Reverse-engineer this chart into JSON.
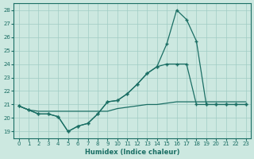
{
  "xlabel": "Humidex (Indice chaleur)",
  "bg_color": "#cce8e0",
  "grid_color": "#a0ccC4",
  "line_color": "#1a6e64",
  "xlim": [
    -0.5,
    23.5
  ],
  "ylim": [
    18.5,
    28.5
  ],
  "xticks": [
    0,
    1,
    2,
    3,
    4,
    5,
    6,
    7,
    8,
    9,
    10,
    11,
    12,
    13,
    14,
    15,
    16,
    17,
    18,
    19,
    20,
    21,
    22,
    23
  ],
  "yticks": [
    19,
    20,
    21,
    22,
    23,
    24,
    25,
    26,
    27,
    28
  ],
  "line1_x": [
    0,
    1,
    2,
    3,
    4,
    5,
    6,
    7,
    8,
    9,
    10,
    11,
    12,
    13,
    14,
    15,
    16,
    17,
    18,
    19,
    20,
    21,
    22,
    23
  ],
  "line1_y": [
    20.9,
    20.6,
    20.3,
    20.3,
    20.1,
    19.0,
    19.4,
    19.6,
    20.3,
    21.2,
    21.3,
    21.8,
    22.5,
    23.3,
    23.8,
    25.5,
    28.0,
    27.3,
    25.7,
    21.0,
    21.0,
    21.0,
    21.0,
    21.0
  ],
  "line2_x": [
    0,
    1,
    2,
    3,
    4,
    5,
    6,
    7,
    8,
    9,
    10,
    11,
    12,
    13,
    14,
    15,
    16,
    17,
    18,
    19,
    20,
    21,
    22,
    23
  ],
  "line2_y": [
    20.9,
    20.6,
    20.3,
    20.3,
    20.1,
    19.0,
    19.4,
    19.6,
    20.3,
    21.2,
    21.3,
    21.8,
    22.5,
    23.3,
    23.8,
    24.0,
    24.0,
    24.0,
    21.0,
    21.0,
    21.0,
    21.0,
    21.0,
    21.0
  ],
  "line3_x": [
    0,
    1,
    2,
    3,
    4,
    5,
    6,
    7,
    8,
    9,
    10,
    11,
    12,
    13,
    14,
    15,
    16,
    17,
    18,
    19,
    20,
    21,
    22,
    23
  ],
  "line3_y": [
    20.9,
    20.6,
    20.5,
    20.5,
    20.5,
    20.5,
    20.5,
    20.5,
    20.5,
    20.5,
    20.7,
    20.8,
    20.9,
    21.0,
    21.0,
    21.1,
    21.2,
    21.2,
    21.2,
    21.2,
    21.2,
    21.2,
    21.2,
    21.2
  ]
}
